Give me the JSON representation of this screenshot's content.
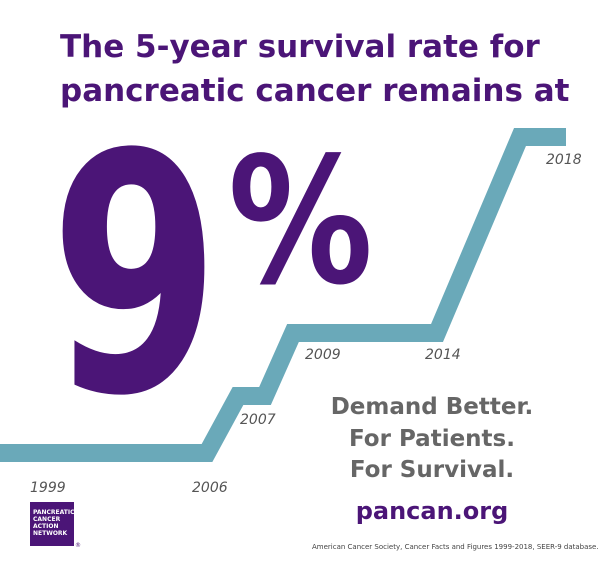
{
  "headline": [
    "The 5-year survival rate for",
    "pancreatic cancer remains at"
  ],
  "big_stat": {
    "number": "9",
    "unit": "%"
  },
  "years": [
    "1999",
    "2006",
    "2007",
    "2009",
    "2014",
    "2018"
  ],
  "tagline": [
    "Demand Better.",
    "For Patients.",
    "For Survival."
  ],
  "url": "pancan.org",
  "logo": {
    "lines": [
      "PANCREATIC",
      "CANCER",
      "ACTION",
      "NETWORK"
    ],
    "mark": "®"
  },
  "source": "American Cancer Society, Cancer Facts and Figures 1999-2018, SEER-9 database."
}
